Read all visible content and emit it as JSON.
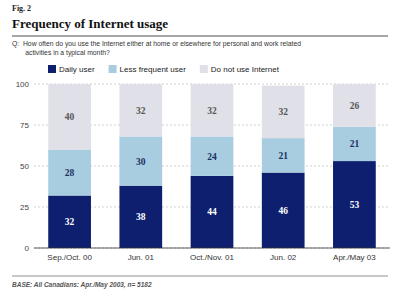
{
  "chart_data": {
    "type": "bar",
    "title": "Frequency of Internet usage",
    "subtitle": "Q:  How often do you use the Internet either at home or elsewhere for personal and work related\n       activities in a typical month?",
    "annotations": [
      "Fig. 2",
      "BASE: All Canadians: Apr./May 2003,  n= 5182"
    ],
    "categories": [
      "Sep./Oct. 00",
      "Jun. 01",
      "Oct./Nov. 01",
      "Jun. 02",
      "Apr./May 03"
    ],
    "series": [
      {
        "name": "Daily user",
        "color": "#0d1f6e",
        "values": [
          32,
          38,
          44,
          46,
          53
        ]
      },
      {
        "name": "Less frequent user",
        "color": "#a8cce0",
        "values": [
          28,
          30,
          24,
          21,
          21
        ]
      },
      {
        "name": "Do not use Internet",
        "color": "#e0e0e8",
        "values": [
          40,
          32,
          32,
          32,
          26
        ]
      }
    ],
    "stacked": true,
    "data_labels": true,
    "grid": true,
    "legend": "top",
    "ylim": [
      0,
      100
    ],
    "yticks": [
      0,
      25,
      50,
      75,
      100
    ]
  }
}
